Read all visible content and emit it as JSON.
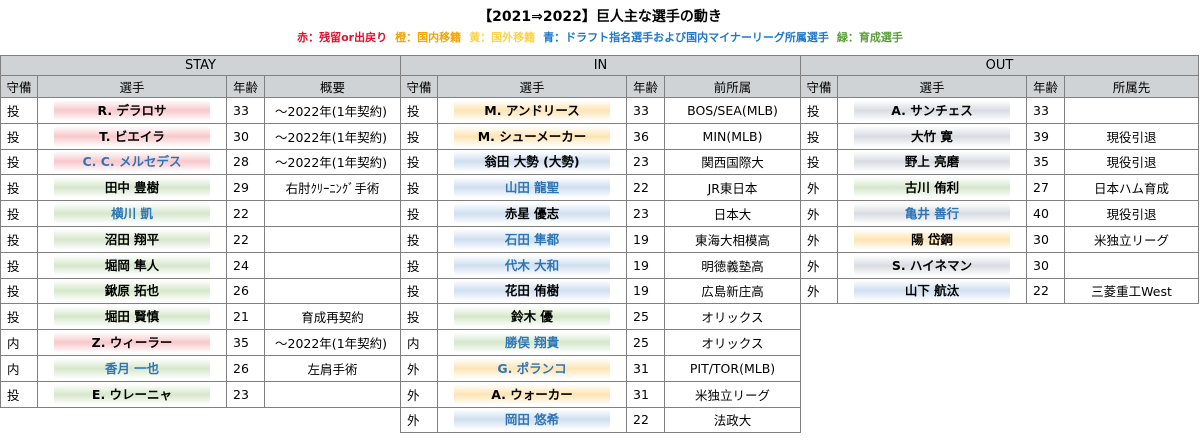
{
  "title": "【2021⇒2022】巨人主な選手の動き",
  "legend": [
    {
      "text": "赤：残留or出戻り",
      "color": "#e0102a"
    },
    {
      "text": "橙：国内移籍",
      "color": "#f5a400"
    },
    {
      "text": "黄：国外移籍",
      "color": "#ffd24a"
    },
    {
      "text": "青：ドラフト指名選手および国内マイナーリーグ所属選手",
      "color": "#1f78c8"
    },
    {
      "text": "緑：育成選手",
      "color": "#5a9e3a"
    }
  ],
  "stay": {
    "section": "STAY",
    "headers": [
      "守備",
      "選手",
      "年齢",
      "概要"
    ],
    "rows": [
      {
        "pos": "投",
        "name": "R. デラロサ",
        "age": "33",
        "note": "～2022年(1年契約)",
        "color": "red",
        "blue_text": false
      },
      {
        "pos": "投",
        "name": "T. ビエイラ",
        "age": "30",
        "note": "～2022年(1年契約)",
        "color": "red",
        "blue_text": false
      },
      {
        "pos": "投",
        "name": "C. C. メルセデス",
        "age": "28",
        "note": "～2022年(1年契約)",
        "color": "red",
        "blue_text": true
      },
      {
        "pos": "投",
        "name": "田中 豊樹",
        "age": "29",
        "note": "右肘ｸﾘｰﾆﾝｸﾞ手術",
        "color": "grn",
        "blue_text": false
      },
      {
        "pos": "投",
        "name": "横川 凱",
        "age": "22",
        "note": "",
        "color": "grn",
        "blue_text": true
      },
      {
        "pos": "投",
        "name": "沼田 翔平",
        "age": "22",
        "note": "",
        "color": "grn",
        "blue_text": false
      },
      {
        "pos": "投",
        "name": "堀岡 隼人",
        "age": "24",
        "note": "",
        "color": "grn",
        "blue_text": false
      },
      {
        "pos": "投",
        "name": "鍬原 拓也",
        "age": "26",
        "note": "",
        "color": "grn",
        "blue_text": false
      },
      {
        "pos": "投",
        "name": "堀田 賢慎",
        "age": "21",
        "note": "育成再契約",
        "color": "grn",
        "blue_text": false
      },
      {
        "pos": "内",
        "name": "Z. ウィーラー",
        "age": "35",
        "note": "～2022年(1年契約)",
        "color": "red",
        "blue_text": false
      },
      {
        "pos": "内",
        "name": "香月 一也",
        "age": "26",
        "note": "左肩手術",
        "color": "grn",
        "blue_text": true
      },
      {
        "pos": "投",
        "name": "E. ウレーニャ",
        "age": "23",
        "note": "",
        "color": "grn",
        "blue_text": false
      }
    ]
  },
  "in": {
    "section": "IN",
    "headers": [
      "守備",
      "選手",
      "年齢",
      "前所属"
    ],
    "rows": [
      {
        "pos": "投",
        "name": "M. アンドリース",
        "age": "33",
        "note": "BOS/SEA(MLB)",
        "color": "org",
        "blue_text": false
      },
      {
        "pos": "投",
        "name": "M. シューメーカー",
        "age": "36",
        "note": "MIN(MLB)",
        "color": "org",
        "blue_text": false
      },
      {
        "pos": "投",
        "name": "翁田 大勢 (大勢)",
        "age": "23",
        "note": "関西国際大",
        "color": "blu",
        "blue_text": false
      },
      {
        "pos": "投",
        "name": "山田 龍聖",
        "age": "22",
        "note": "JR東日本",
        "color": "blu",
        "blue_text": true
      },
      {
        "pos": "投",
        "name": "赤星 優志",
        "age": "23",
        "note": "日本大",
        "color": "blu",
        "blue_text": false
      },
      {
        "pos": "投",
        "name": "石田 隼都",
        "age": "19",
        "note": "東海大相模高",
        "color": "blu",
        "blue_text": true
      },
      {
        "pos": "投",
        "name": "代木 大和",
        "age": "19",
        "note": "明徳義塾高",
        "color": "blu",
        "blue_text": true
      },
      {
        "pos": "投",
        "name": "花田 侑樹",
        "age": "19",
        "note": "広島新庄高",
        "color": "blu",
        "blue_text": false
      },
      {
        "pos": "投",
        "name": "鈴木 優",
        "age": "25",
        "note": "オリックス",
        "color": "grn",
        "blue_text": false
      },
      {
        "pos": "内",
        "name": "勝俣 翔貴",
        "age": "25",
        "note": "オリックス",
        "color": "grn",
        "blue_text": true
      },
      {
        "pos": "外",
        "name": "G. ポランコ",
        "age": "31",
        "note": "PIT/TOR(MLB)",
        "color": "org",
        "blue_text": true
      },
      {
        "pos": "外",
        "name": "A. ウォーカー",
        "age": "31",
        "note": "米独立リーグ",
        "color": "org",
        "blue_text": false
      },
      {
        "pos": "外",
        "name": "岡田 悠希",
        "age": "22",
        "note": "法政大",
        "color": "blu",
        "blue_text": true
      }
    ]
  },
  "out": {
    "section": "OUT",
    "headers": [
      "守備",
      "選手",
      "年齢",
      "所属先"
    ],
    "rows": [
      {
        "pos": "投",
        "name": "A. サンチェス",
        "age": "33",
        "note": "",
        "color": "gry",
        "blue_text": false
      },
      {
        "pos": "投",
        "name": "大竹 寛",
        "age": "39",
        "note": "現役引退",
        "color": "gry",
        "blue_text": false
      },
      {
        "pos": "投",
        "name": "野上 亮磨",
        "age": "35",
        "note": "現役引退",
        "color": "gry",
        "blue_text": false
      },
      {
        "pos": "外",
        "name": "古川 侑利",
        "age": "27",
        "note": "日本ハム育成",
        "color": "grn",
        "blue_text": false
      },
      {
        "pos": "外",
        "name": "亀井 善行",
        "age": "40",
        "note": "現役引退",
        "color": "gry",
        "blue_text": true
      },
      {
        "pos": "外",
        "name": "陽 岱鋼",
        "age": "30",
        "note": "米独立リーグ",
        "color": "org",
        "blue_text": false
      },
      {
        "pos": "外",
        "name": "S. ハイネマン",
        "age": "30",
        "note": "",
        "color": "gry",
        "blue_text": false
      },
      {
        "pos": "外",
        "name": "山下 航汰",
        "age": "22",
        "note": "三菱重工West",
        "color": "blu",
        "blue_text": false
      }
    ]
  }
}
